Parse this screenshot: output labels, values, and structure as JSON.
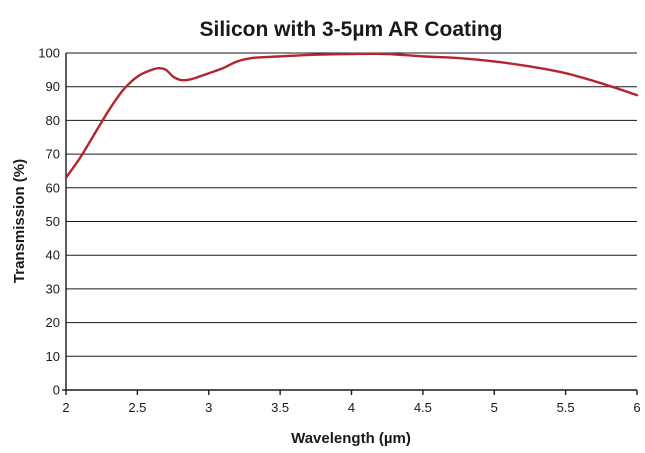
{
  "chart_data": {
    "type": "line",
    "title": "Silicon with 3-5µm AR Coating",
    "xlabel": "Wavelength (µm)",
    "ylabel": "Transmission (%)",
    "xlim": [
      2,
      6
    ],
    "ylim": [
      0,
      100
    ],
    "x_ticks": [
      "2",
      "2.5",
      "3",
      "3.5",
      "4",
      "4.5",
      "5",
      "5.5",
      "6"
    ],
    "y_ticks": [
      "0",
      "10",
      "20",
      "30",
      "40",
      "50",
      "60",
      "70",
      "80",
      "90",
      "100"
    ],
    "grid": true,
    "color": "#b3262e",
    "series": [
      {
        "x": [
          2.0,
          2.1,
          2.2,
          2.3,
          2.4,
          2.5,
          2.6,
          2.65,
          2.7,
          2.75,
          2.8,
          2.85,
          2.9,
          3.0,
          3.1,
          3.2,
          3.3,
          3.5,
          3.75,
          4.0,
          4.25,
          4.5,
          4.75,
          5.0,
          5.25,
          5.5,
          5.75,
          6.0
        ],
        "y": [
          63,
          69,
          76,
          83,
          89,
          93,
          95,
          95.5,
          95,
          93,
          92,
          92,
          92.5,
          94,
          95.5,
          97.5,
          98.5,
          99,
          99.5,
          99.7,
          99.7,
          99,
          98.5,
          97.5,
          96,
          94,
          91,
          87.5
        ]
      }
    ]
  }
}
